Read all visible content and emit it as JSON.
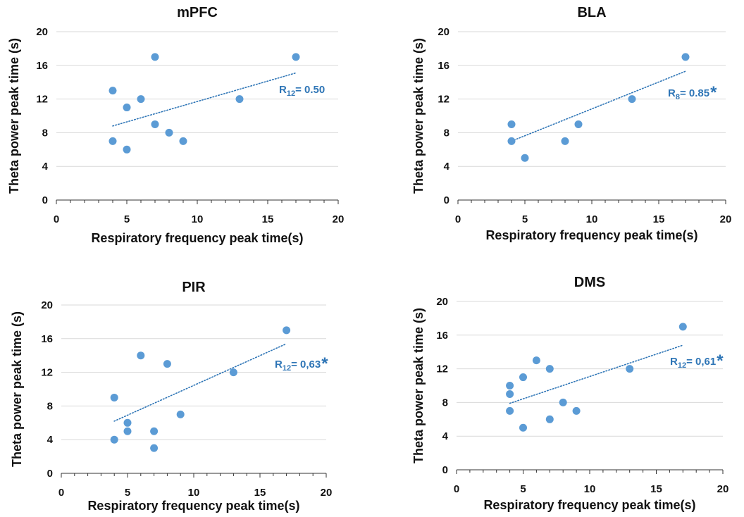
{
  "colors": {
    "point": "#5b9bd5",
    "trendline": "#2e75b6",
    "annotation": "#2e75b6",
    "grid": "#d9d9d9",
    "axis": "#333333",
    "text": "#111111"
  },
  "chart_data": [
    {
      "type": "scatter",
      "title": "mPFC",
      "xlabel": "Respiratory frequency peak time(s)",
      "ylabel": "Theta power peak time (s)",
      "xlim": [
        0,
        20
      ],
      "ylim": [
        0,
        20
      ],
      "xticks": [
        "0",
        "5",
        "10",
        "15",
        "20"
      ],
      "yticks": [
        "0",
        "4",
        "8",
        "12",
        "16",
        "20"
      ],
      "grid": "horizontal",
      "points": [
        {
          "x": 4,
          "y": 13
        },
        {
          "x": 4,
          "y": 7
        },
        {
          "x": 5,
          "y": 11
        },
        {
          "x": 5,
          "y": 6
        },
        {
          "x": 6,
          "y": 12
        },
        {
          "x": 7,
          "y": 17
        },
        {
          "x": 7,
          "y": 9
        },
        {
          "x": 8,
          "y": 8
        },
        {
          "x": 9,
          "y": 7
        },
        {
          "x": 13,
          "y": 12
        },
        {
          "x": 17,
          "y": 17
        }
      ],
      "trendline": {
        "x": [
          4,
          17
        ],
        "y": [
          8.8,
          15.1
        ]
      },
      "annotation": {
        "prefix": "R",
        "subscript": "12",
        "value": " = 0.50",
        "star": ""
      }
    },
    {
      "type": "scatter",
      "title": "BLA",
      "xlabel": "Respiratory frequency peak time(s)",
      "ylabel": "Theta power peak time (s)",
      "xlim": [
        0,
        20
      ],
      "ylim": [
        0,
        20
      ],
      "xticks": [
        "0",
        "5",
        "10",
        "15",
        "20"
      ],
      "yticks": [
        "0",
        "4",
        "8",
        "12",
        "16",
        "20"
      ],
      "grid": "horizontal",
      "points": [
        {
          "x": 4,
          "y": 9
        },
        {
          "x": 4,
          "y": 7
        },
        {
          "x": 5,
          "y": 5
        },
        {
          "x": 8,
          "y": 7
        },
        {
          "x": 9,
          "y": 9
        },
        {
          "x": 13,
          "y": 12
        },
        {
          "x": 17,
          "y": 17
        }
      ],
      "trendline": {
        "x": [
          4,
          17
        ],
        "y": [
          7.0,
          15.3
        ]
      },
      "annotation": {
        "prefix": "R",
        "subscript": "8",
        "value": " = 0.85",
        "star": "*"
      }
    },
    {
      "type": "scatter",
      "title": "PIR",
      "xlabel": "Respiratory frequency peak time(s)",
      "ylabel": "Theta power peak time (s)",
      "xlim": [
        0,
        20
      ],
      "ylim": [
        0,
        20
      ],
      "xticks": [
        "0",
        "5",
        "10",
        "15",
        "20"
      ],
      "yticks": [
        "0",
        "4",
        "8",
        "12",
        "16",
        "20"
      ],
      "grid": "horizontal",
      "points": [
        {
          "x": 4,
          "y": 9
        },
        {
          "x": 4,
          "y": 4
        },
        {
          "x": 5,
          "y": 6
        },
        {
          "x": 5,
          "y": 5
        },
        {
          "x": 6,
          "y": 14
        },
        {
          "x": 7,
          "y": 5
        },
        {
          "x": 7,
          "y": 3
        },
        {
          "x": 8,
          "y": 13
        },
        {
          "x": 9,
          "y": 7
        },
        {
          "x": 13,
          "y": 12
        },
        {
          "x": 17,
          "y": 17
        }
      ],
      "trendline": {
        "x": [
          4,
          17
        ],
        "y": [
          6.2,
          15.4
        ]
      },
      "annotation": {
        "prefix": "R",
        "subscript": "12",
        "value": "= 0,63",
        "star": "*"
      }
    },
    {
      "type": "scatter",
      "title": "DMS",
      "xlabel": "Respiratory frequency peak time(s)",
      "ylabel": "Theta power peak time (s)",
      "xlim": [
        0,
        20
      ],
      "ylim": [
        0,
        20
      ],
      "xticks": [
        "0",
        "5",
        "10",
        "15",
        "20"
      ],
      "yticks": [
        "0",
        "4",
        "8",
        "12",
        "16",
        "20"
      ],
      "grid": "horizontal",
      "points": [
        {
          "x": 4,
          "y": 10
        },
        {
          "x": 4,
          "y": 9
        },
        {
          "x": 4,
          "y": 7
        },
        {
          "x": 5,
          "y": 11
        },
        {
          "x": 5,
          "y": 5
        },
        {
          "x": 6,
          "y": 13
        },
        {
          "x": 7,
          "y": 12
        },
        {
          "x": 7,
          "y": 6
        },
        {
          "x": 8,
          "y": 8
        },
        {
          "x": 9,
          "y": 7
        },
        {
          "x": 13,
          "y": 12
        },
        {
          "x": 17,
          "y": 17
        }
      ],
      "trendline": {
        "x": [
          4,
          17
        ],
        "y": [
          7.9,
          14.8
        ]
      },
      "annotation": {
        "prefix": "R",
        "subscript": "12",
        "value": " = 0,61",
        "star": "*"
      }
    }
  ]
}
